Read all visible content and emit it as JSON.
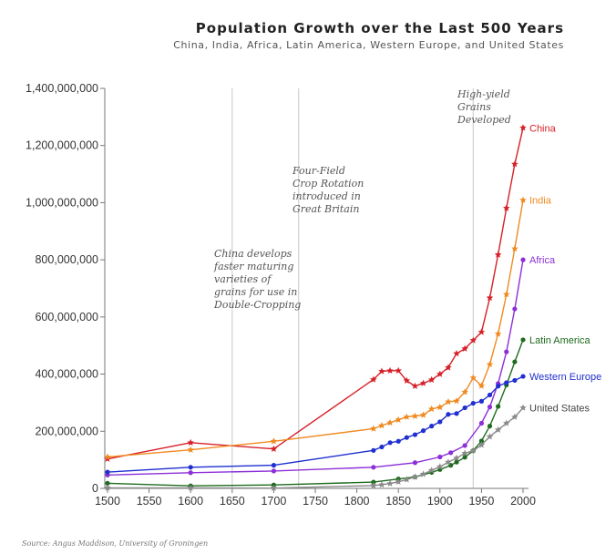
{
  "chart_data": {
    "type": "line",
    "title": "Population Growth over the Last 500 Years",
    "subtitle": "China, India, Africa, Latin America, Western Europe, and United States",
    "source": "Source: Angus Maddison, University of Groningen",
    "xlabel": "",
    "ylabel": "",
    "xlim": [
      1500,
      2000
    ],
    "ylim": [
      0,
      1400000000
    ],
    "xticks": [
      1500,
      1550,
      1600,
      1650,
      1700,
      1750,
      1800,
      1850,
      1900,
      1950,
      2000
    ],
    "yticks": [
      0,
      200000000,
      400000000,
      600000000,
      800000000,
      1000000000,
      1200000000,
      1400000000
    ],
    "ytick_labels": [
      "0",
      "200,000,000",
      "400,000,000",
      "600,000,000",
      "800,000,000",
      "1,000,000,000",
      "1,200,000,000",
      "1,400,000,000"
    ],
    "grid": false,
    "vlines": [
      1650,
      1730,
      1940
    ],
    "annotations": [
      {
        "year": 1650,
        "lines": [
          "China develops",
          "faster maturing",
          "varieties of",
          "grains for use in",
          "Double-Cropping"
        ]
      },
      {
        "year": 1730,
        "lines": [
          "Four-Field",
          "Crop Rotation",
          "introduced in",
          "Great Britain"
        ]
      },
      {
        "year": 1940,
        "lines": [
          "High-yield",
          "Grains",
          "Developed"
        ]
      }
    ],
    "series": [
      {
        "name": "China",
        "color": "#d62027",
        "marker": "star",
        "x": [
          1500,
          1600,
          1700,
          1820,
          1830,
          1840,
          1850,
          1860,
          1870,
          1880,
          1890,
          1900,
          1910,
          1920,
          1930,
          1940,
          1950,
          1960,
          1970,
          1980,
          1990,
          2000
        ],
        "y": [
          103000000,
          160000000,
          138000000,
          381000000,
          410000000,
          412000000,
          412000000,
          377000000,
          358000000,
          368000000,
          380000000,
          400000000,
          423000000,
          472000000,
          489000000,
          518000000,
          547000000,
          667000000,
          818000000,
          981000000,
          1135000000,
          1262000000
        ]
      },
      {
        "name": "India",
        "color": "#ef8a21",
        "marker": "star",
        "x": [
          1500,
          1600,
          1700,
          1820,
          1830,
          1840,
          1850,
          1860,
          1870,
          1880,
          1890,
          1900,
          1910,
          1920,
          1930,
          1940,
          1950,
          1960,
          1970,
          1980,
          1990,
          2000
        ],
        "y": [
          110000000,
          135000000,
          165000000,
          209000000,
          220000000,
          230000000,
          240000000,
          250000000,
          253000000,
          257000000,
          278000000,
          284000000,
          303000000,
          306000000,
          337000000,
          387000000,
          359000000,
          434000000,
          541000000,
          679000000,
          839000000,
          1009000000
        ]
      },
      {
        "name": "Africa",
        "color": "#8c2fd8",
        "marker": "dot",
        "x": [
          1500,
          1600,
          1700,
          1820,
          1870,
          1900,
          1913,
          1930,
          1950,
          1960,
          1970,
          1980,
          1990,
          2000
        ],
        "y": [
          47000000,
          55000000,
          61000000,
          74000000,
          90000000,
          110000000,
          125000000,
          150000000,
          228000000,
          285000000,
          367000000,
          478000000,
          628000000,
          800000000
        ]
      },
      {
        "name": "Latin America",
        "color": "#1f6b1f",
        "marker": "dot",
        "x": [
          1500,
          1600,
          1700,
          1820,
          1850,
          1870,
          1890,
          1900,
          1913,
          1920,
          1930,
          1940,
          1950,
          1960,
          1970,
          1980,
          1990,
          2000
        ],
        "y": [
          18000000,
          9000000,
          12000000,
          22000000,
          33000000,
          40000000,
          56000000,
          66000000,
          81000000,
          92000000,
          109000000,
          132000000,
          166000000,
          218000000,
          287000000,
          362000000,
          443000000,
          520000000
        ]
      },
      {
        "name": "Western Europe",
        "color": "#1f2fd0",
        "marker": "dot",
        "x": [
          1500,
          1600,
          1700,
          1820,
          1830,
          1840,
          1850,
          1860,
          1870,
          1880,
          1890,
          1900,
          1910,
          1920,
          1930,
          1940,
          1950,
          1960,
          1970,
          1980,
          1990,
          2000
        ],
        "y": [
          57000000,
          74000000,
          81000000,
          133000000,
          145000000,
          160000000,
          165000000,
          178000000,
          188000000,
          202000000,
          218000000,
          233000000,
          259000000,
          262000000,
          282000000,
          298000000,
          305000000,
          327000000,
          358000000,
          370000000,
          378000000,
          392000000
        ]
      },
      {
        "name": "United States",
        "color": "#8a8a8a",
        "marker": "star",
        "x": [
          1500,
          1600,
          1700,
          1820,
          1830,
          1840,
          1850,
          1860,
          1870,
          1880,
          1890,
          1900,
          1910,
          1920,
          1930,
          1940,
          1950,
          1960,
          1970,
          1980,
          1990,
          2000
        ],
        "y": [
          2000000,
          1500000,
          1000000,
          10000000,
          13000000,
          17000000,
          23000000,
          31000000,
          40000000,
          50000000,
          63000000,
          76000000,
          92000000,
          106000000,
          123000000,
          132000000,
          152000000,
          181000000,
          205000000,
          228000000,
          250000000,
          282000000
        ]
      }
    ]
  }
}
